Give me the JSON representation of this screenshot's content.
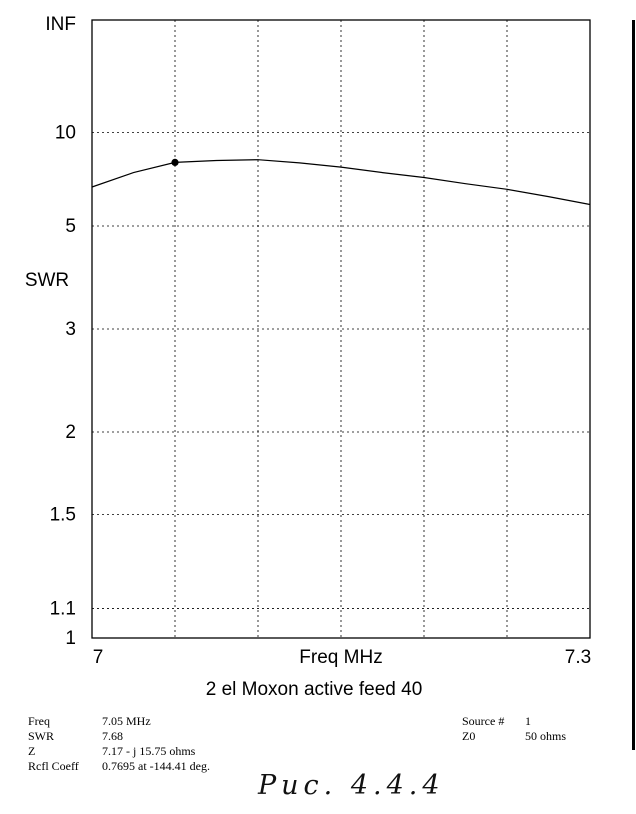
{
  "chart_data": {
    "type": "line",
    "title": "2 el Moxon active feed 40",
    "xlabel": "Freq MHz",
    "ylabel": "SWR",
    "xlim": [
      7,
      7.3
    ],
    "y_scale": "reflection-coefficient (SWR)",
    "x_tick_labels": [
      "7",
      "7.3"
    ],
    "y_ticks": [
      {
        "value": 1,
        "label": "1"
      },
      {
        "value": 1.1,
        "label": "1.1"
      },
      {
        "value": 1.5,
        "label": "1.5"
      },
      {
        "value": 2,
        "label": "2"
      },
      {
        "value": 3,
        "label": "3"
      },
      {
        "value": 5,
        "label": "5"
      },
      {
        "value": 10,
        "label": "10"
      },
      {
        "value": "INF",
        "label": "INF"
      }
    ],
    "grid": true,
    "series": [
      {
        "x": [
          7.0,
          7.025,
          7.05,
          7.075,
          7.1,
          7.125,
          7.15,
          7.175,
          7.2,
          7.225,
          7.25,
          7.275,
          7.3
        ],
        "y": [
          6.4,
          7.1,
          7.68,
          7.8,
          7.85,
          7.65,
          7.4,
          7.1,
          6.85,
          6.55,
          6.3,
          6.0,
          5.7
        ]
      }
    ],
    "marker": {
      "x": 7.05,
      "y": 7.68
    }
  },
  "info": {
    "left": [
      {
        "label": "Freq",
        "value": "7.05 MHz"
      },
      {
        "label": "SWR",
        "value": "7.68"
      },
      {
        "label": "Z",
        "value": "7.17 - j 15.75 ohms"
      },
      {
        "label": "Rcfl Coeff",
        "value": "0.7695 at -144.41 deg."
      }
    ],
    "right": [
      {
        "label": "Source #",
        "value": "1"
      },
      {
        "label": "Z0",
        "value": "50 ohms"
      }
    ]
  },
  "handwritten_caption": "Рис. 4.4.4"
}
